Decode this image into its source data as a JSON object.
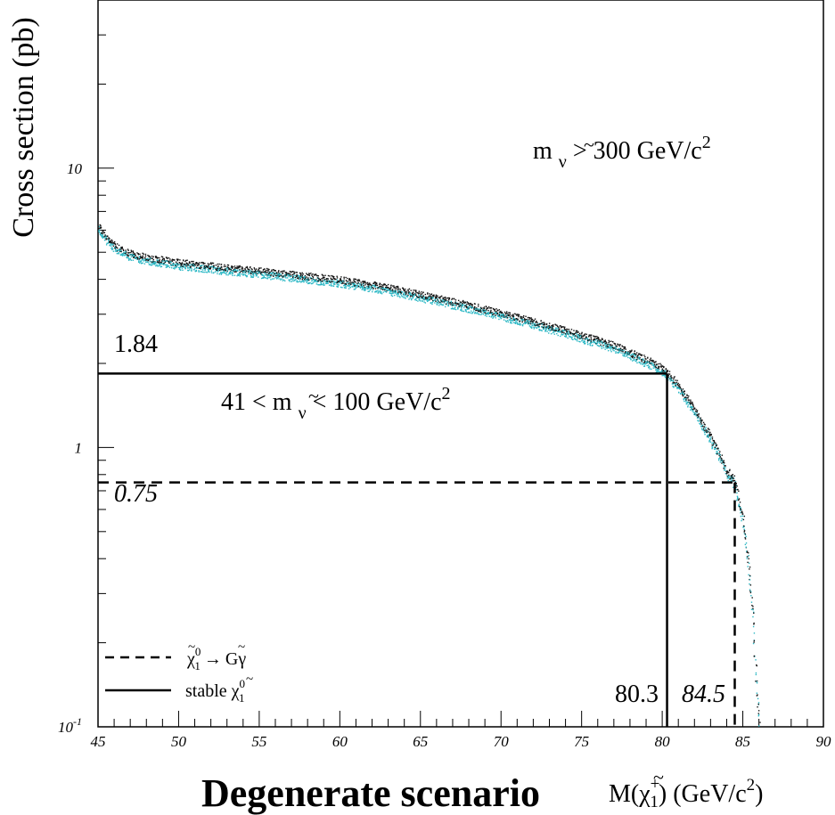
{
  "chart_data": {
    "type": "scatter",
    "title": "Degenerate scenario",
    "ylabel": "Cross section (pb)",
    "xlabel": {
      "prefix": "M(",
      "symbol": "χ",
      "sup": "+",
      "sub": "1",
      "suffix_a": ") (GeV/c",
      "power": "2",
      "suffix_b": ")"
    },
    "xlim": [
      45,
      90
    ],
    "ylim": [
      0.1,
      40
    ],
    "y_scale": "log",
    "x_ticks": [
      "45",
      "50",
      "55",
      "60",
      "65",
      "70",
      "75",
      "80",
      "85",
      "90"
    ],
    "y_ticks": [
      {
        "value": 0.1,
        "base": "10",
        "exp": "-1"
      },
      {
        "value": 1,
        "base": "1",
        "exp": ""
      },
      {
        "value": 10,
        "base": "10",
        "exp": ""
      }
    ],
    "grid": false,
    "legend_position": "bottom-left",
    "legend": [
      {
        "style": "dashed",
        "lhs_symbol": "χ",
        "sup": "0",
        "sub": "1",
        "arrow": "→",
        "rhs": "Gγ"
      },
      {
        "style": "solid",
        "text": "stable ",
        "symbol": "χ",
        "sup": "0",
        "sub": "1"
      }
    ],
    "series": [
      {
        "marker_colors": [
          "#111111",
          "#2ab7c4"
        ],
        "x": [
          45.0,
          45.5,
          46.0,
          46.5,
          47.0,
          48.0,
          50.0,
          52.5,
          55.0,
          57.5,
          60.0,
          62.5,
          65.0,
          67.5,
          70.0,
          72.0,
          74.0,
          76.0,
          77.5,
          78.5,
          79.5,
          80.3,
          81.0,
          82.0,
          83.0,
          83.5,
          84.0,
          84.5,
          85.0,
          85.3,
          85.6,
          85.8,
          86.0
        ],
        "y": [
          6.2,
          5.6,
          5.25,
          5.05,
          4.9,
          4.75,
          4.55,
          4.4,
          4.25,
          4.1,
          3.95,
          3.75,
          3.5,
          3.25,
          3.0,
          2.8,
          2.6,
          2.4,
          2.25,
          2.1,
          1.98,
          1.84,
          1.65,
          1.35,
          1.08,
          0.95,
          0.82,
          0.75,
          0.55,
          0.4,
          0.25,
          0.15,
          0.1
        ]
      }
    ],
    "limit_lines": [
      {
        "style": "solid",
        "y": 1.84,
        "x": 80.3,
        "y_label": "1.84",
        "x_label": "80.3"
      },
      {
        "style": "dashed",
        "y": 0.75,
        "x": 84.5,
        "y_label": "0.75",
        "x_label": "84.5"
      }
    ],
    "annotations": [
      {
        "id": "high",
        "pre": "m ",
        "tilde": "~",
        "sub": "ν",
        "post": " > 300 GeV/c",
        "power": "2"
      },
      {
        "id": "low",
        "pre": "41 < m ",
        "tilde": "~",
        "sub": "ν",
        "post": " < 100 GeV/c",
        "power": "2"
      }
    ]
  }
}
